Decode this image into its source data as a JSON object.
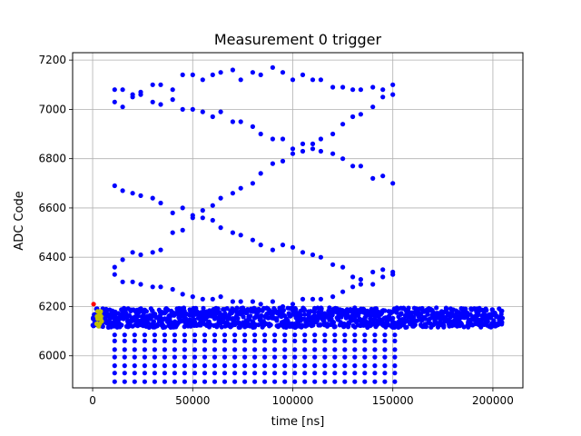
{
  "chart_data": {
    "type": "scatter",
    "title": "Measurement 0 trigger",
    "xlabel": "time [ns]",
    "ylabel": "ADC Code",
    "xlim": [
      -10000,
      215000
    ],
    "ylim": [
      5870,
      7230
    ],
    "x_ticks": [
      0,
      50000,
      100000,
      150000,
      200000
    ],
    "x_tick_labels": [
      "0",
      "50000",
      "100000",
      "150000",
      "200000"
    ],
    "y_ticks": [
      6000,
      6200,
      6400,
      6600,
      6800,
      7000,
      7200
    ],
    "y_tick_labels": [
      "6000",
      "6200",
      "6400",
      "6600",
      "6800",
      "7000",
      "7200"
    ],
    "grid": true,
    "legend": "none",
    "series": [
      {
        "color": "#0000ff",
        "marker": "circle",
        "baseline_band": {
          "x_range": [
            0,
            205000
          ],
          "y_range": [
            6105,
            6205
          ]
        },
        "lower_rows": {
          "x_range": [
            11000,
            151000
          ],
          "x_step": 5000,
          "y_values": [
            5895,
            5930,
            5960,
            5995,
            6025,
            6060,
            6085
          ]
        },
        "points": [
          [
            11000,
            7080
          ],
          [
            15000,
            7080
          ],
          [
            20000,
            7060
          ],
          [
            24000,
            7070
          ],
          [
            30000,
            7100
          ],
          [
            34000,
            7100
          ],
          [
            40000,
            7080
          ],
          [
            45000,
            7140
          ],
          [
            50000,
            7140
          ],
          [
            55000,
            7120
          ],
          [
            60000,
            7140
          ],
          [
            64000,
            7150
          ],
          [
            70000,
            7160
          ],
          [
            74000,
            7120
          ],
          [
            80000,
            7150
          ],
          [
            84000,
            7140
          ],
          [
            90000,
            7170
          ],
          [
            95000,
            7150
          ],
          [
            100000,
            7120
          ],
          [
            105000,
            7140
          ],
          [
            110000,
            7120
          ],
          [
            114000,
            7120
          ],
          [
            120000,
            7090
          ],
          [
            125000,
            7090
          ],
          [
            130000,
            7080
          ],
          [
            134000,
            7080
          ],
          [
            140000,
            7090
          ],
          [
            145000,
            7080
          ],
          [
            150000,
            7100
          ],
          [
            11000,
            7030
          ],
          [
            15000,
            7010
          ],
          [
            20000,
            7050
          ],
          [
            24000,
            7060
          ],
          [
            30000,
            7030
          ],
          [
            34000,
            7020
          ],
          [
            40000,
            7040
          ],
          [
            45000,
            7000
          ],
          [
            50000,
            7000
          ],
          [
            55000,
            6990
          ],
          [
            60000,
            6970
          ],
          [
            64000,
            6990
          ],
          [
            70000,
            6950
          ],
          [
            74000,
            6950
          ],
          [
            80000,
            6930
          ],
          [
            84000,
            6900
          ],
          [
            90000,
            6880
          ],
          [
            95000,
            6880
          ],
          [
            100000,
            6840
          ],
          [
            105000,
            6860
          ],
          [
            110000,
            6840
          ],
          [
            114000,
            6830
          ],
          [
            120000,
            6820
          ],
          [
            125000,
            6800
          ],
          [
            130000,
            6770
          ],
          [
            134000,
            6770
          ],
          [
            140000,
            6720
          ],
          [
            145000,
            6730
          ],
          [
            150000,
            6700
          ],
          [
            11000,
            6690
          ],
          [
            15000,
            6670
          ],
          [
            20000,
            6660
          ],
          [
            24000,
            6650
          ],
          [
            30000,
            6640
          ],
          [
            34000,
            6620
          ],
          [
            40000,
            6580
          ],
          [
            45000,
            6600
          ],
          [
            50000,
            6570
          ],
          [
            55000,
            6560
          ],
          [
            60000,
            6550
          ],
          [
            64000,
            6520
          ],
          [
            70000,
            6500
          ],
          [
            74000,
            6490
          ],
          [
            80000,
            6470
          ],
          [
            84000,
            6450
          ],
          [
            90000,
            6430
          ],
          [
            95000,
            6450
          ],
          [
            100000,
            6440
          ],
          [
            105000,
            6420
          ],
          [
            110000,
            6410
          ],
          [
            114000,
            6400
          ],
          [
            120000,
            6370
          ],
          [
            125000,
            6360
          ],
          [
            130000,
            6320
          ],
          [
            134000,
            6310
          ],
          [
            140000,
            6340
          ],
          [
            145000,
            6350
          ],
          [
            150000,
            6340
          ],
          [
            11000,
            6360
          ],
          [
            15000,
            6390
          ],
          [
            20000,
            6420
          ],
          [
            24000,
            6410
          ],
          [
            30000,
            6420
          ],
          [
            34000,
            6430
          ],
          [
            40000,
            6500
          ],
          [
            45000,
            6510
          ],
          [
            50000,
            6560
          ],
          [
            55000,
            6590
          ],
          [
            60000,
            6610
          ],
          [
            64000,
            6640
          ],
          [
            70000,
            6660
          ],
          [
            74000,
            6680
          ],
          [
            80000,
            6700
          ],
          [
            84000,
            6740
          ],
          [
            90000,
            6780
          ],
          [
            95000,
            6790
          ],
          [
            100000,
            6820
          ],
          [
            105000,
            6830
          ],
          [
            110000,
            6860
          ],
          [
            114000,
            6880
          ],
          [
            120000,
            6900
          ],
          [
            125000,
            6940
          ],
          [
            130000,
            6970
          ],
          [
            134000,
            6980
          ],
          [
            140000,
            7010
          ],
          [
            145000,
            7050
          ],
          [
            150000,
            7060
          ],
          [
            11000,
            6330
          ],
          [
            15000,
            6300
          ],
          [
            20000,
            6300
          ],
          [
            24000,
            6290
          ],
          [
            30000,
            6280
          ],
          [
            34000,
            6280
          ],
          [
            40000,
            6270
          ],
          [
            45000,
            6250
          ],
          [
            50000,
            6240
          ],
          [
            55000,
            6230
          ],
          [
            60000,
            6230
          ],
          [
            64000,
            6240
          ],
          [
            70000,
            6220
          ],
          [
            74000,
            6220
          ],
          [
            80000,
            6220
          ],
          [
            84000,
            6210
          ],
          [
            90000,
            6220
          ],
          [
            95000,
            6200
          ],
          [
            100000,
            6210
          ],
          [
            105000,
            6230
          ],
          [
            110000,
            6230
          ],
          [
            114000,
            6230
          ],
          [
            120000,
            6240
          ],
          [
            125000,
            6260
          ],
          [
            130000,
            6280
          ],
          [
            134000,
            6290
          ],
          [
            140000,
            6290
          ],
          [
            145000,
            6320
          ],
          [
            150000,
            6330
          ]
        ]
      },
      {
        "color": "#bfbf00",
        "marker": "circle",
        "points": [
          [
            2000,
            6130
          ],
          [
            2500,
            6150
          ],
          [
            3000,
            6160
          ],
          [
            3500,
            6170
          ],
          [
            4000,
            6150
          ],
          [
            4500,
            6140
          ],
          [
            3000,
            6120
          ],
          [
            2500,
            6180
          ],
          [
            3500,
            6130
          ],
          [
            4000,
            6180
          ],
          [
            2200,
            6160
          ],
          [
            4200,
            6160
          ]
        ]
      },
      {
        "color": "#ff0000",
        "marker": "circle",
        "points": [
          [
            500,
            6210
          ]
        ]
      }
    ]
  }
}
